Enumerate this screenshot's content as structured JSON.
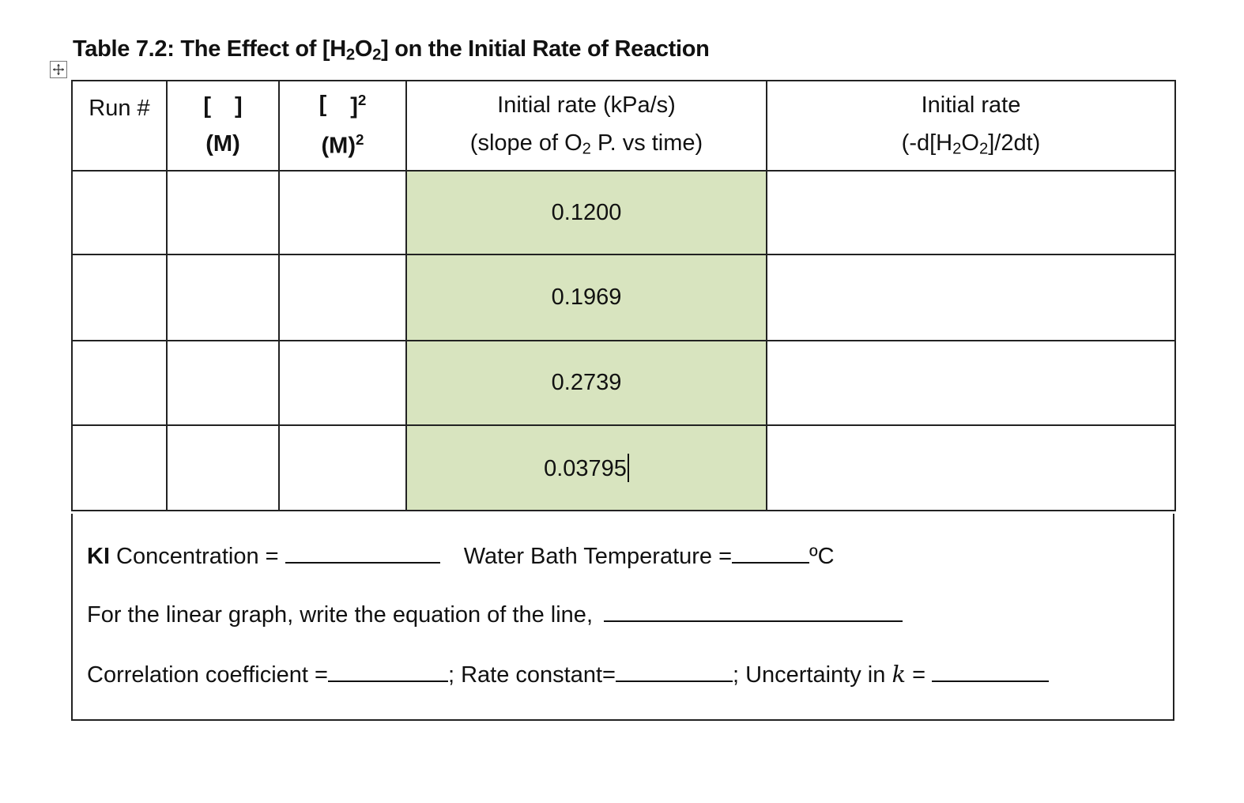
{
  "title": {
    "prefix": "Table 7.2: The Effect of [H",
    "sub1": "2",
    "mid": "O",
    "sub2": "2",
    "suffix": "] on the Initial Rate of Reaction"
  },
  "headers": {
    "run": "Run #",
    "col2_top_open": "[",
    "col2_top_close": "]",
    "col2_unit": "(M)",
    "col3_top_open": "[",
    "col3_top_close": "]",
    "col3_top_sup": "2",
    "col3_unit": "(M)",
    "col3_unit_sup": "2",
    "rate_line1": "Initial rate (kPa/s)",
    "rate_line2_a": "(slope of O",
    "rate_line2_sub": "2",
    "rate_line2_b": " P. vs time)",
    "init_line1": "Initial rate",
    "init_line2_a": "(-d[H",
    "init_line2_sub1": "2",
    "init_line2_mid": "O",
    "init_line2_sub2": "2",
    "init_line2_b": "]/2dt)"
  },
  "rows": [
    {
      "rate": "0.1200"
    },
    {
      "rate": "0.1969"
    },
    {
      "rate": "0.2739"
    },
    {
      "rate": "0.03795"
    }
  ],
  "footer": {
    "ki_bold": "KI",
    "ki_text": " Concentration = ",
    "water_bath": "Water Bath Temperature =",
    "degree": "ºC",
    "linear_graph": "For the linear graph, write the equation of the line,",
    "correlation": "Correlation coefficient =",
    "rate_constant": "; Rate constant=",
    "uncertainty": "; Uncertainty in ",
    "k_symbol": "k",
    "equals": " = "
  },
  "colors": {
    "highlight": "#d8e4bf",
    "border": "#222222"
  },
  "icons": {
    "move_handle": "move-arrows-icon"
  }
}
